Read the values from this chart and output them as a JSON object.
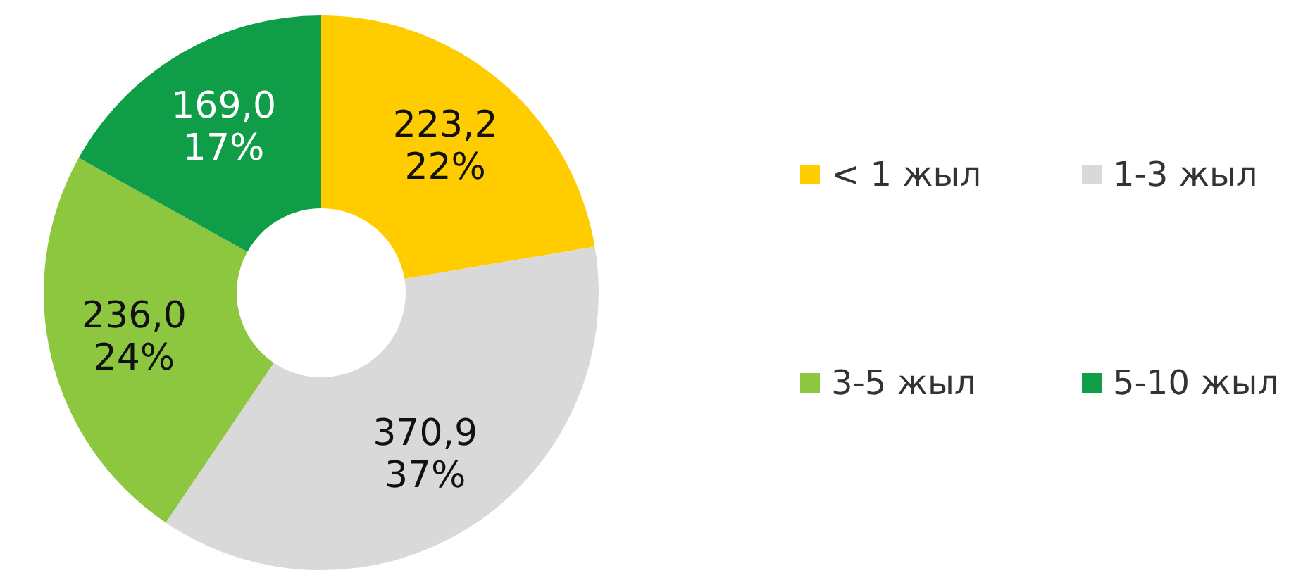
{
  "chart_data": {
    "type": "donut",
    "categories": [
      "< 1 жыл",
      "1-3 жыл",
      "3-5 жыл",
      "5-10 жыл"
    ],
    "values": [
      223.2,
      370.9,
      236.0,
      169.0
    ],
    "colors": [
      "#ffcc00",
      "#d9d9d9",
      "#8dc63f",
      "#0f9d48"
    ],
    "value_labels": [
      "223,2\n22%",
      "370,9\n37%",
      "236,0\n24%",
      "169,0\n17%"
    ],
    "legend": "right"
  }
}
